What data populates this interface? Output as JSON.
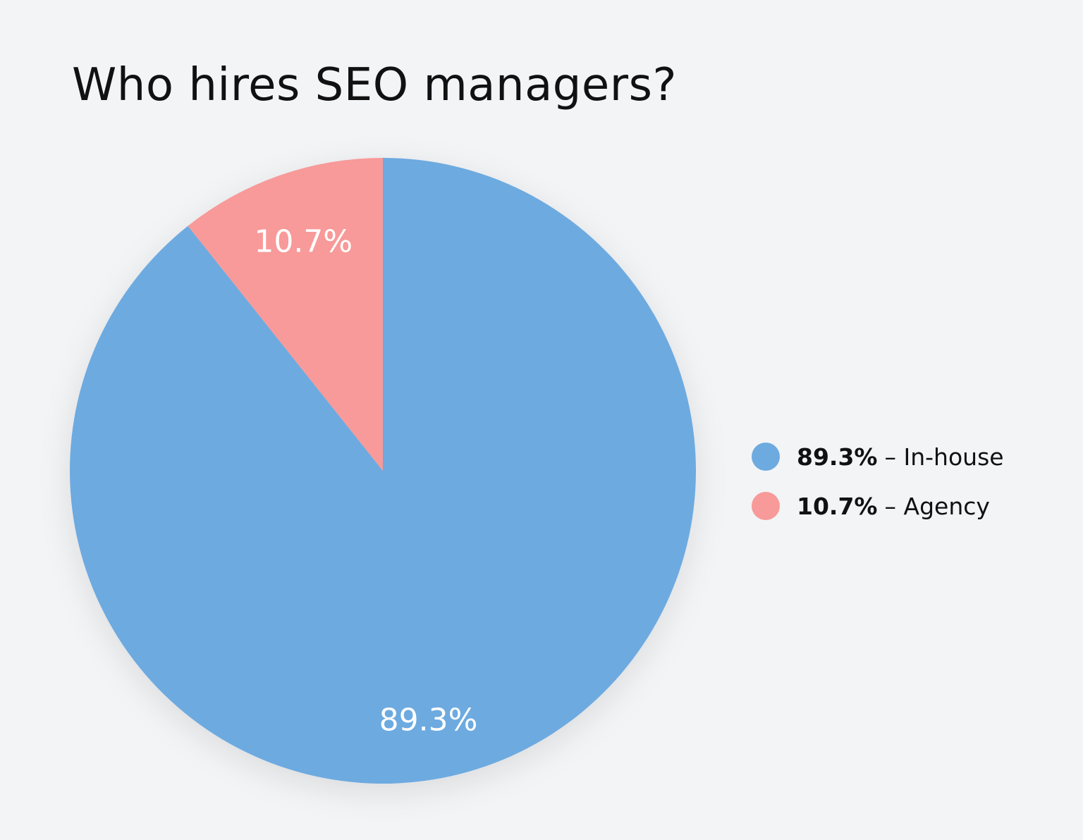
{
  "chart_data": {
    "type": "pie",
    "title": "Who hires SEO managers?",
    "slices": [
      {
        "label": "In-house",
        "value": 89.3,
        "value_label": "89.3%",
        "color": "#6daae0"
      },
      {
        "label": "Agency",
        "value": 10.7,
        "value_label": "10.7%",
        "color": "#f79a99"
      }
    ],
    "legend": {
      "placement": "right",
      "items": [
        {
          "pct": "89.3%",
          "text": "– In-house",
          "color": "#6daae0"
        },
        {
          "pct": "10.7%",
          "text": "– Agency",
          "color": "#f79a99"
        }
      ]
    }
  }
}
